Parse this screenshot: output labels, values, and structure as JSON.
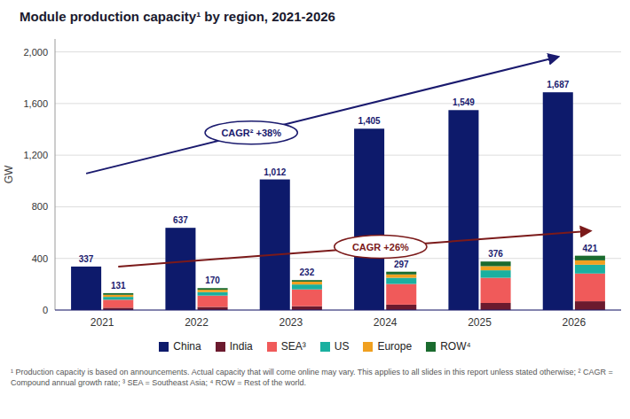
{
  "chart_data": {
    "type": "bar",
    "title": "Module production capacity¹ by region, 2021-2026",
    "ylabel": "GW",
    "categories": [
      "2021",
      "2022",
      "2023",
      "2024",
      "2025",
      "2026"
    ],
    "series": [
      {
        "name": "China",
        "color": "#0d1a6b",
        "stacked": false,
        "data_labels": true,
        "values": [
          337,
          637,
          1012,
          1405,
          1549,
          1687
        ],
        "value_labels": [
          "337",
          "637",
          "1,012",
          "1,405",
          "1,549",
          "1,687"
        ]
      },
      {
        "name": "India",
        "color": "#6b1a2e",
        "stacked": true,
        "values": [
          18,
          24,
          30,
          42,
          55,
          68
        ]
      },
      {
        "name": "SEA³",
        "color": "#f05a5a",
        "stacked": true,
        "values": [
          62,
          88,
          130,
          160,
          195,
          215
        ]
      },
      {
        "name": "US",
        "color": "#1ab0a0",
        "stacked": true,
        "values": [
          22,
          27,
          38,
          48,
          58,
          68
        ]
      },
      {
        "name": "Europe",
        "color": "#f0a020",
        "stacked": true,
        "values": [
          16,
          18,
          22,
          26,
          32,
          34
        ]
      },
      {
        "name": "ROW⁴",
        "color": "#1a6b2e",
        "stacked": true,
        "values": [
          13,
          13,
          12,
          21,
          36,
          36
        ]
      }
    ],
    "totals": [
      131,
      170,
      232,
      297,
      376,
      421
    ],
    "annotations": [
      {
        "text": "CAGR² +38%",
        "color": "#1a1a6e"
      },
      {
        "text": "CAGR +26%",
        "color": "#7b1a1a"
      }
    ],
    "footnote": "¹ Production capacity is based on announcements. Actual capacity that will come online may vary. This applies to all slides in this report unless stated otherwise; ² CAGR = Compound annual growth rate; ³ SEA = Southeast Asia; ⁴ ROW = Rest of the world.",
    "ylim": [
      0,
      2100
    ],
    "yticks": [
      0,
      400,
      800,
      {
        "value": 1200,
        "label": "1,200"
      },
      {
        "value": 1600,
        "label": "1,600"
      },
      {
        "value": 2000,
        "label": "2,000"
      }
    ],
    "grid": true,
    "legend": "bottom"
  }
}
